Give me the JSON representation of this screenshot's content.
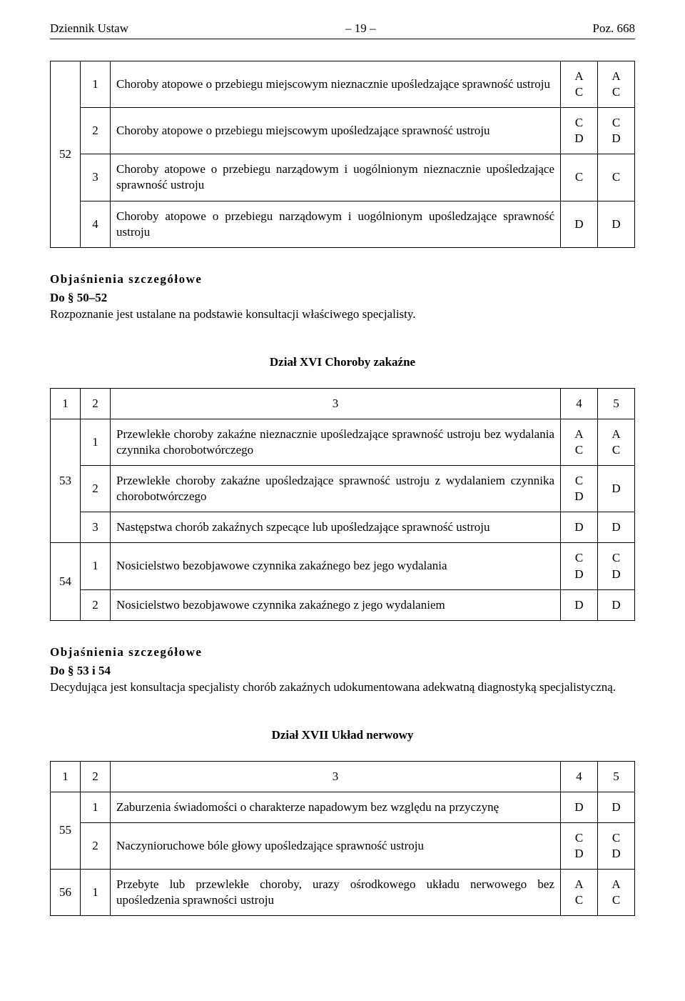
{
  "header": {
    "left": "Dziennik Ustaw",
    "center": "– 19 –",
    "right": "Poz. 668"
  },
  "colors": {
    "text": "#000000",
    "background": "#ffffff",
    "border": "#000000"
  },
  "typography": {
    "font_family": "Times New Roman",
    "body_fontsize_pt": 12
  },
  "table1": {
    "row_label": "52",
    "rows": [
      {
        "n": "1",
        "desc": "Choroby atopowe o przebiegu miejscowym nieznacznie upośledzające sprawność ustroju",
        "c4": "A\nC",
        "c5": "A\nC"
      },
      {
        "n": "2",
        "desc": "Choroby atopowe o przebiegu miejscowym upośledzające sprawność ustroju",
        "c4": "C\nD",
        "c5": "C\nD"
      },
      {
        "n": "3",
        "desc": "Choroby atopowe o przebiegu narządowym i uogólnionym nieznacznie upośledzające sprawność ustroju",
        "c4": "C",
        "c5": "C"
      },
      {
        "n": "4",
        "desc": "Choroby atopowe o przebiegu narządowym i uogólnionym upośledzające sprawność ustroju",
        "c4": "D",
        "c5": "D"
      }
    ]
  },
  "explain1": {
    "title": "Objaśnienia szczegółowe",
    "sub": "Do § 50–52",
    "text": "Rozpoznanie jest ustalane na podstawie konsultacji właściwego specjalisty."
  },
  "division1": "Dział XVI  Choroby zakaźne",
  "table2": {
    "header": [
      "1",
      "2",
      "3",
      "4",
      "5"
    ],
    "groups": [
      {
        "label": "53",
        "rows": [
          {
            "n": "1",
            "desc": "Przewlekłe choroby zakaźne nieznacznie upośledzające sprawność ustroju bez wydalania czynnika chorobotwórczego",
            "c4": "A\nC",
            "c5": "A\nC"
          },
          {
            "n": "2",
            "desc": "Przewlekłe choroby zakaźne upośledzające sprawność ustroju z wydalaniem czynnika chorobotwórczego",
            "c4": "C\nD",
            "c5": "D"
          },
          {
            "n": "3",
            "desc": "Następstwa chorób zakaźnych szpecące lub upośledzające sprawność ustroju",
            "c4": "D",
            "c5": "D"
          }
        ]
      },
      {
        "label": "54",
        "rows": [
          {
            "n": "1",
            "desc": "Nosicielstwo bezobjawowe czynnika zakaźnego bez jego wydalania",
            "c4": "C\nD",
            "c5": "C\nD"
          },
          {
            "n": "2",
            "desc": "Nosicielstwo bezobjawowe czynnika zakaźnego z jego wydalaniem",
            "c4": "D",
            "c5": "D"
          }
        ]
      }
    ]
  },
  "explain2": {
    "title": "Objaśnienia szczegółowe",
    "sub": "Do § 53 i 54",
    "text": "Decydująca jest konsultacja specjalisty chorób zakaźnych udokumentowana adekwatną diagnostyką specjalistyczną."
  },
  "division2": "Dział XVII  Układ nerwowy",
  "table3": {
    "header": [
      "1",
      "2",
      "3",
      "4",
      "5"
    ],
    "groups": [
      {
        "label": "55",
        "rows": [
          {
            "n": "1",
            "desc": "Zaburzenia świadomości o charakterze napadowym bez względu na przyczynę",
            "c4": "D",
            "c5": "D"
          },
          {
            "n": "2",
            "desc": "Naczynioruchowe bóle głowy upośledzające sprawność ustroju",
            "c4": "C\nD",
            "c5": "C\nD"
          }
        ]
      },
      {
        "label": "56",
        "rows": [
          {
            "n": "1",
            "desc": "Przebyte lub przewlekłe choroby, urazy ośrodkowego układu nerwowego bez upośledzenia sprawności ustroju",
            "c4": "A\nC",
            "c5": "A\nC"
          }
        ]
      }
    ]
  }
}
